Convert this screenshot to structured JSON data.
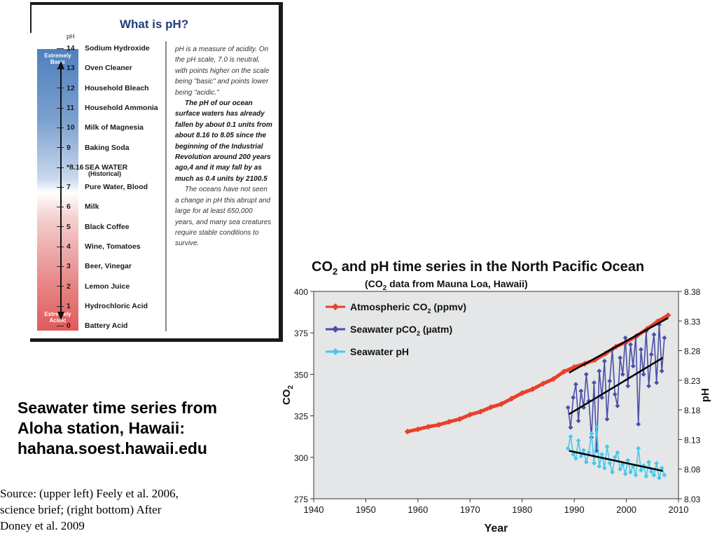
{
  "ph_panel": {
    "title": "What is pH?",
    "header": "pH",
    "extremely_basic": "Extremely Basic",
    "extremely_acidic": "Extremely Acidic",
    "scale": [
      {
        "value": "14",
        "name": "Sodium Hydroxide"
      },
      {
        "value": "13",
        "name": "Oven Cleaner"
      },
      {
        "value": "12",
        "name": "Household Bleach"
      },
      {
        "value": "11",
        "name": "Household Ammonia"
      },
      {
        "value": "10",
        "name": "Milk of Magnesia"
      },
      {
        "value": "9",
        "name": "Baking Soda"
      },
      {
        "value": "*8.16",
        "name": "SEA WATER"
      },
      {
        "value": "7",
        "name": "Pure Water, Blood"
      },
      {
        "value": "6",
        "name": "Milk"
      },
      {
        "value": "5",
        "name": "Black Coffee"
      },
      {
        "value": "4",
        "name": "Wine, Tomatoes"
      },
      {
        "value": "3",
        "name": "Beer, Vinegar"
      },
      {
        "value": "2",
        "name": "Lemon Juice"
      },
      {
        "value": "1",
        "name": "Hydrochloric Acid"
      },
      {
        "value": "0",
        "name": "Battery Acid"
      }
    ],
    "sea_water_note": "(Historical)",
    "text_intro": "pH is a measure of acidity. On the pH scale, 7.0 is neutral, with points higher on the scale being \"basic\" and points lower being \"acidic.\"",
    "text_bold": "The pH of our ocean surface waters has already fallen by about 0.1 units from about 8.16 to 8.05 since the beginning of the Industrial Revolution around 200 years ago,4 and it may fall by as much as 0.4 units by 2100.5",
    "text_end": "The oceans have not seen a change in pH this abrupt and large for at least 650,000 years, and many sea creatures require stable conditions to survive."
  },
  "caption": {
    "line1": "Seawater time series from",
    "line2": "Aloha station, Hawaii:",
    "line3": "hahana.soest.hawaii.edu"
  },
  "source": {
    "line1": "Source: (upper left) Feely et al. 2006,",
    "line2": "science brief; (right bottom) After",
    "line3": "Doney et al. 2009"
  },
  "colors": {
    "atm": "#e8402a",
    "pco2": "#4a4fa6",
    "ph": "#48c8ea",
    "plot_bg": "#e4e6e7"
  },
  "chart_data": {
    "type": "line",
    "title_pre": "CO",
    "title_post": " and pH time series in the North Pacific Ocean",
    "subtitle_pre": "(CO",
    "subtitle_post": " data from Mauna Loa, Hawaii)",
    "xlabel": "Year",
    "ylabel_left": "CO",
    "ylabel_right": "pH",
    "xlim": [
      1940,
      2010
    ],
    "ylim_left": [
      275,
      400
    ],
    "ylim_right": [
      8.03,
      8.38
    ],
    "x_ticks": [
      "1940",
      "1950",
      "1960",
      "1970",
      "1980",
      "1990",
      "2000",
      "2010"
    ],
    "y_left_ticks": [
      "275",
      "300",
      "325",
      "350",
      "375",
      "400"
    ],
    "y_right_ticks": [
      "8.03",
      "8.08",
      "8.13",
      "8.18",
      "8.23",
      "8.28",
      "8.33",
      "8.38"
    ],
    "legend_position": "top-left",
    "series": [
      {
        "name": "Atmospheric CO2 (ppmv)",
        "axis": "left",
        "x": [
          1958,
          1960,
          1962,
          1964,
          1966,
          1968,
          1970,
          1972,
          1974,
          1976,
          1978,
          1980,
          1982,
          1984,
          1986,
          1988,
          1990,
          1992,
          1994,
          1996,
          1998,
          2000,
          2002,
          2004,
          2006,
          2008
        ],
        "y": [
          315.5,
          316.9,
          318.4,
          319.6,
          321.4,
          323.0,
          325.7,
          327.5,
          330.2,
          332.1,
          335.4,
          338.7,
          341.1,
          344.4,
          347.2,
          351.6,
          354.4,
          356.4,
          358.8,
          362.6,
          366.7,
          369.6,
          373.2,
          377.5,
          381.9,
          385.6
        ]
      },
      {
        "name": "Seawater pCO2 (µatm)",
        "axis": "left",
        "x": [
          1988.8,
          1989.3,
          1989.8,
          1990.3,
          1990.8,
          1991.3,
          1991.8,
          1992.3,
          1992.8,
          1993.3,
          1993.8,
          1994.3,
          1994.8,
          1995.3,
          1995.8,
          1996.3,
          1996.8,
          1997.3,
          1997.8,
          1998.3,
          1998.8,
          1999.3,
          1999.8,
          2000.3,
          2000.8,
          2001.3,
          2001.8,
          2002.3,
          2002.8,
          2003.3,
          2003.8,
          2004.3,
          2004.8,
          2005.3,
          2005.8,
          2006.3,
          2006.8,
          2007.3
        ],
        "y": [
          330,
          318,
          336,
          344,
          322,
          340,
          330,
          350,
          334,
          312,
          345,
          304,
          352,
          336,
          358,
          323,
          346,
          365,
          338,
          331,
          360,
          350,
          372,
          343,
          368,
          355,
          373,
          320,
          365,
          350,
          376,
          343,
          362,
          374,
          345,
          380,
          352,
          372
        ]
      },
      {
        "name": "Seawater pH",
        "axis": "right",
        "x": [
          1988.8,
          1989.3,
          1989.8,
          1990.3,
          1990.8,
          1991.3,
          1991.8,
          1992.3,
          1992.8,
          1993.3,
          1993.8,
          1994.3,
          1994.8,
          1995.3,
          1995.8,
          1996.3,
          1996.8,
          1997.3,
          1997.8,
          1998.3,
          1998.8,
          1999.3,
          1999.8,
          2000.3,
          2000.8,
          2001.3,
          2001.8,
          2002.3,
          2002.8,
          2003.3,
          2003.8,
          2004.3,
          2004.8,
          2005.3,
          2005.8,
          2006.3,
          2006.8,
          2007.3
        ],
        "y": [
          8.115,
          8.135,
          8.105,
          8.098,
          8.128,
          8.102,
          8.112,
          8.092,
          8.108,
          8.14,
          8.09,
          8.152,
          8.085,
          8.105,
          8.082,
          8.118,
          8.09,
          8.075,
          8.1,
          8.108,
          8.08,
          8.088,
          8.072,
          8.095,
          8.075,
          8.085,
          8.07,
          8.115,
          8.078,
          8.086,
          8.068,
          8.092,
          8.076,
          8.07,
          8.09,
          8.065,
          8.082,
          8.07
        ]
      }
    ],
    "trend_lines": [
      {
        "series": "Atmospheric CO2 (ppmv)",
        "axis": "left",
        "x": [
          1989,
          2008
        ],
        "y": [
          351,
          384
        ]
      },
      {
        "series": "Seawater pCO2 (µatm)",
        "axis": "left",
        "x": [
          1989,
          2007
        ],
        "y": [
          326,
          360
        ]
      },
      {
        "series": "Seawater pH",
        "axis": "right",
        "x": [
          1989,
          2007
        ],
        "y": [
          8.111,
          8.077
        ]
      }
    ]
  }
}
